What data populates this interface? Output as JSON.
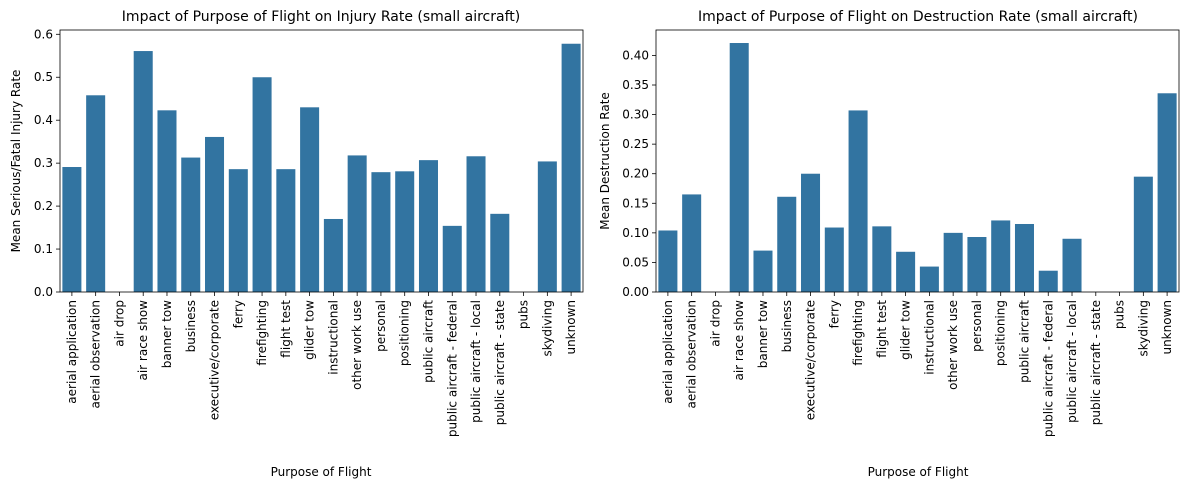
{
  "chart_data": [
    {
      "type": "bar",
      "title": "Impact of Purpose of Flight on Injury Rate (small aircraft)",
      "xlabel": "Purpose of Flight",
      "ylabel": "Mean Serious/Fatal Injury Rate",
      "ylim": [
        0,
        0.61
      ],
      "yticks": [
        0.0,
        0.1,
        0.2,
        0.3,
        0.4,
        0.5,
        0.6
      ],
      "ytick_labels": [
        "0.0",
        "0.1",
        "0.2",
        "0.3",
        "0.4",
        "0.5",
        "0.6"
      ],
      "bar_color": "#3274a1",
      "grid": false,
      "categories": [
        "aerial application",
        "aerial observation",
        "air drop",
        "air race show",
        "banner tow",
        "business",
        "executive/corporate",
        "ferry",
        "firefighting",
        "flight test",
        "glider tow",
        "instructional",
        "other work use",
        "personal",
        "positioning",
        "public aircraft",
        "public aircraft - federal",
        "public aircraft - local",
        "public aircraft - state",
        "pubs",
        "skydiving",
        "unknown"
      ],
      "values": [
        0.291,
        0.458,
        0.0,
        0.561,
        0.423,
        0.313,
        0.361,
        0.286,
        0.5,
        0.286,
        0.43,
        0.17,
        0.318,
        0.279,
        0.281,
        0.307,
        0.154,
        0.316,
        0.182,
        0.0,
        0.304,
        0.578
      ]
    },
    {
      "type": "bar",
      "title": "Impact of Purpose of Flight on Destruction Rate (small aircraft)",
      "xlabel": "Purpose of Flight",
      "ylabel": "Mean Destruction Rate",
      "ylim": [
        0,
        0.443
      ],
      "yticks": [
        0.0,
        0.05,
        0.1,
        0.15,
        0.2,
        0.25,
        0.3,
        0.35,
        0.4
      ],
      "ytick_labels": [
        "0.00",
        "0.05",
        "0.10",
        "0.15",
        "0.20",
        "0.25",
        "0.30",
        "0.35",
        "0.40"
      ],
      "bar_color": "#3274a1",
      "grid": false,
      "categories": [
        "aerial application",
        "aerial observation",
        "air drop",
        "air race show",
        "banner tow",
        "business",
        "executive/corporate",
        "ferry",
        "firefighting",
        "flight test",
        "glider tow",
        "instructional",
        "other work use",
        "personal",
        "positioning",
        "public aircraft",
        "public aircraft - federal",
        "public aircraft - local",
        "public aircraft - state",
        "pubs",
        "skydiving",
        "unknown"
      ],
      "values": [
        0.104,
        0.165,
        0.0,
        0.421,
        0.07,
        0.161,
        0.2,
        0.109,
        0.307,
        0.111,
        0.068,
        0.043,
        0.1,
        0.093,
        0.121,
        0.115,
        0.036,
        0.09,
        0.0,
        0.0,
        0.195,
        0.336
      ]
    }
  ]
}
